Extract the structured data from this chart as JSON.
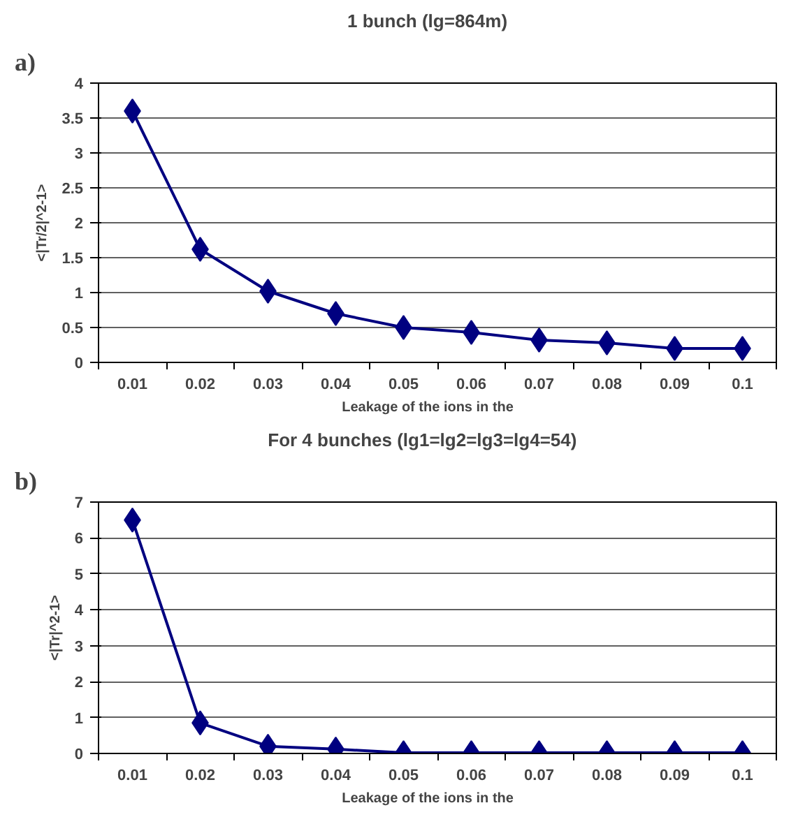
{
  "chart_data": [
    {
      "type": "line",
      "title": "1   bunch   (lg=864m)",
      "xlabel": "Leakage  of  the  ions  in  the",
      "ylabel": "<|Tr/2|^2-1>",
      "annotations": [
        "a)"
      ],
      "categories": [
        "0.01",
        "0.02",
        "0.03",
        "0.04",
        "0.05",
        "0.06",
        "0.07",
        "0.08",
        "0.09",
        "0.1"
      ],
      "series": [
        {
          "color": "#000080",
          "values": [
            3.6,
            1.62,
            1.02,
            0.7,
            0.5,
            0.43,
            0.32,
            0.28,
            0.2,
            0.2
          ]
        }
      ],
      "ylim": [
        0,
        4
      ],
      "yticks": [
        0,
        {
          "value": 0.5,
          "label": "0.5"
        },
        1,
        {
          "value": 1.5,
          "label": "1.5"
        },
        2,
        {
          "value": 2.5,
          "label": "2.5"
        },
        3,
        {
          "value": 3.5,
          "label": "3.5"
        },
        4
      ],
      "grid": "y",
      "marker": "diamond",
      "line_style": "solid"
    },
    {
      "type": "line",
      "title": "For   4   bunches   (lg1=lg2=lg3=lg4=54)",
      "xlabel": "Leakage  of  the  ions  in  the",
      "ylabel": "<|Tr|^2-1>",
      "annotations": [
        "b)"
      ],
      "categories": [
        "0.01",
        "0.02",
        "0.03",
        "0.04",
        "0.05",
        "0.06",
        "0.07",
        "0.08",
        "0.09",
        "0.1"
      ],
      "series": [
        {
          "color": "#000080",
          "values": [
            6.5,
            0.85,
            0.2,
            0.12,
            0.02,
            0.02,
            0.02,
            0.02,
            0.02,
            0.02
          ]
        }
      ],
      "ylim": [
        0,
        7
      ],
      "yticks": [
        0,
        1,
        2,
        3,
        4,
        5,
        6,
        7
      ],
      "grid": "y",
      "marker": "diamond",
      "line_style": "solid"
    }
  ]
}
